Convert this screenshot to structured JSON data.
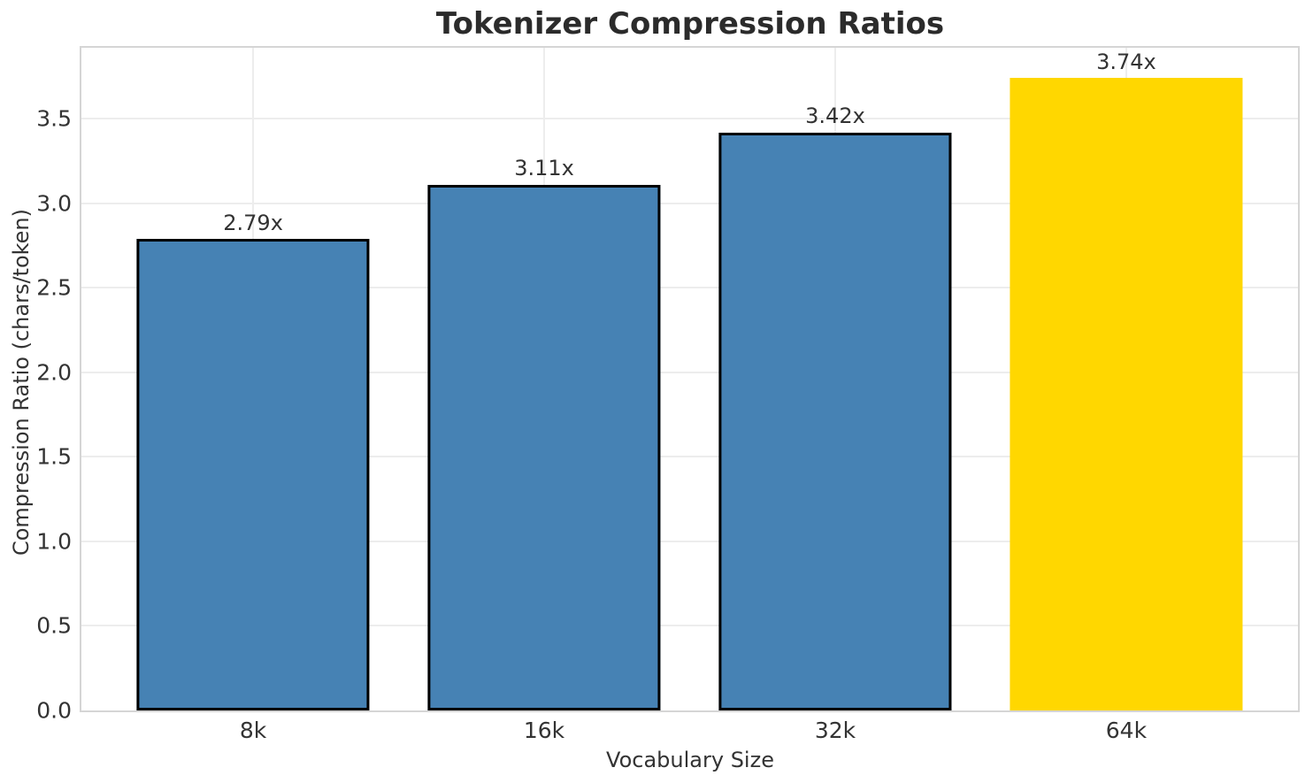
{
  "chart_data": {
    "type": "bar",
    "title": "Tokenizer Compression Ratios",
    "xlabel": "Vocabulary Size",
    "ylabel": "Compression Ratio (chars/token)",
    "categories": [
      "8k",
      "16k",
      "32k",
      "64k"
    ],
    "values": [
      2.79,
      3.11,
      3.42,
      3.74
    ],
    "bar_labels": [
      "2.79x",
      "3.11x",
      "3.42x",
      "3.74x"
    ],
    "bar_colors": [
      "#4682B4",
      "#4682B4",
      "#4682B4",
      "#FFD700"
    ],
    "bar_edge_colors": [
      "#000000",
      "#000000",
      "#000000",
      "none"
    ],
    "ylim": [
      0,
      3.92
    ],
    "yticks": [
      "0.0",
      "0.5",
      "1.0",
      "1.5",
      "2.0",
      "2.5",
      "3.0",
      "3.5"
    ],
    "grid": true,
    "legend_position": "none"
  },
  "colors": {
    "bar_default": "#4682B4",
    "bar_highlight": "#FFD700",
    "bar_edge": "#000000",
    "grid_line": "#EDEDED",
    "spine": "#D5D5D5",
    "title_text": "#2B2B2B",
    "label_text": "#333333"
  }
}
